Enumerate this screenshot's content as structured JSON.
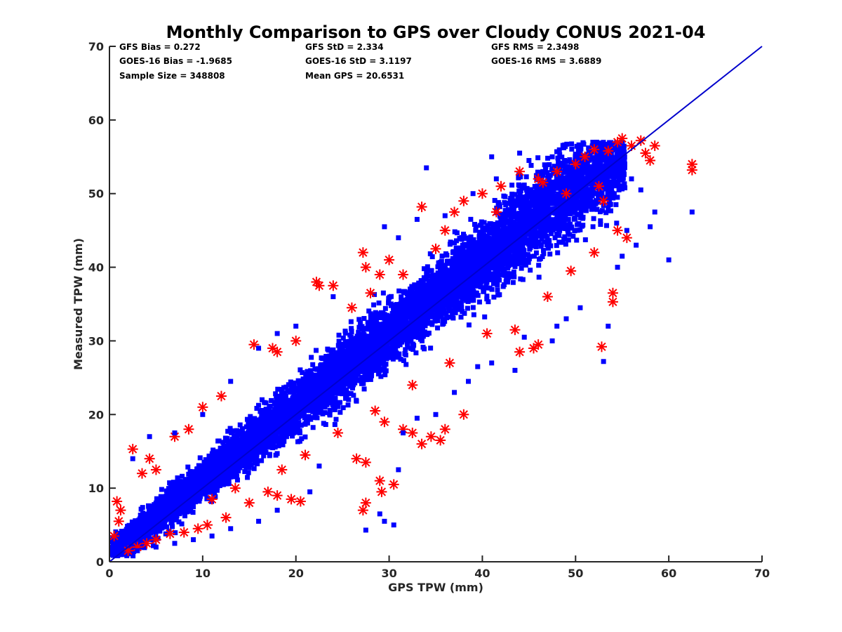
{
  "chart_data": {
    "type": "scatter",
    "title": "Monthly Comparison to GPS over Cloudy CONUS 2021-04",
    "xlabel": "GPS TPW (mm)",
    "ylabel": "Measured TPW (mm)",
    "xlim": [
      0,
      70
    ],
    "ylim": [
      0,
      70
    ],
    "xticks": [
      "0",
      "10",
      "20",
      "30",
      "40",
      "50",
      "60",
      "70"
    ],
    "yticks": [
      "0",
      "10",
      "20",
      "30",
      "40",
      "50",
      "60",
      "70"
    ],
    "grid": false,
    "reference_line": {
      "x": [
        0,
        70
      ],
      "y": [
        0,
        70
      ],
      "color": "#0000cc"
    },
    "stats": [
      [
        "GFS Bias = 0.272",
        "GFS StD = 2.334",
        "GFS RMS = 2.3498"
      ],
      [
        "GOES-16 Bias = -1.9685",
        "GOES-16 StD = 3.1197",
        "GOES-16 RMS = 3.6889"
      ],
      [
        "Sample Size = 348808",
        "Mean GPS = 20.6531",
        ""
      ]
    ],
    "series": [
      {
        "marker": "asterisk",
        "color": "#ff0000",
        "points": [
          [
            0.5,
            3.5
          ],
          [
            0.8,
            8.2
          ],
          [
            1.0,
            5.5
          ],
          [
            1.2,
            7.0
          ],
          [
            2.5,
            15.3
          ],
          [
            3.5,
            12.0
          ],
          [
            4.3,
            14.0
          ],
          [
            5.0,
            12.5
          ],
          [
            7.0,
            17.0
          ],
          [
            8.5,
            18.0
          ],
          [
            10.0,
            21.0
          ],
          [
            12.0,
            22.5
          ],
          [
            15.5,
            29.5
          ],
          [
            17.5,
            29.0
          ],
          [
            18.0,
            28.5
          ],
          [
            20.0,
            30.0
          ],
          [
            22.2,
            38.0
          ],
          [
            22.5,
            37.5
          ],
          [
            24.0,
            37.5
          ],
          [
            27.2,
            42.0
          ],
          [
            27.5,
            40.0
          ],
          [
            28.0,
            36.5
          ],
          [
            29.0,
            39.0
          ],
          [
            30.0,
            41.0
          ],
          [
            33.5,
            48.2
          ],
          [
            36.0,
            45.0
          ],
          [
            37.0,
            47.5
          ],
          [
            38.0,
            49.0
          ],
          [
            40.0,
            50.0
          ],
          [
            42.0,
            51.0
          ],
          [
            44.0,
            53.0
          ],
          [
            46.0,
            52.0
          ],
          [
            48.0,
            53.0
          ],
          [
            50.0,
            54.0
          ],
          [
            51.0,
            55.0
          ],
          [
            52.0,
            56.0
          ],
          [
            53.5,
            55.8
          ],
          [
            54.5,
            57.0
          ],
          [
            55.0,
            57.5
          ],
          [
            56.0,
            56.5
          ],
          [
            57.0,
            57.2
          ],
          [
            57.5,
            55.5
          ],
          [
            58.0,
            54.5
          ],
          [
            58.5,
            56.5
          ],
          [
            62.5,
            54.0
          ],
          [
            62.5,
            53.2
          ],
          [
            53.0,
            49.0
          ],
          [
            54.5,
            45.0
          ],
          [
            55.5,
            44.0
          ],
          [
            54.0,
            36.5
          ],
          [
            54.0,
            35.3
          ],
          [
            52.8,
            29.2
          ],
          [
            44.0,
            28.5
          ],
          [
            45.5,
            29.0
          ],
          [
            46.0,
            29.5
          ],
          [
            38.0,
            20.0
          ],
          [
            36.0,
            18.0
          ],
          [
            35.5,
            16.5
          ],
          [
            34.5,
            17.0
          ],
          [
            33.5,
            16.0
          ],
          [
            32.5,
            17.5
          ],
          [
            31.5,
            18.0
          ],
          [
            29.5,
            19.0
          ],
          [
            27.5,
            13.5
          ],
          [
            26.5,
            14.0
          ],
          [
            29.0,
            11.0
          ],
          [
            30.5,
            10.5
          ],
          [
            29.2,
            9.5
          ],
          [
            27.5,
            8.0
          ],
          [
            27.2,
            7.0
          ],
          [
            20.5,
            8.2
          ],
          [
            19.5,
            8.5
          ],
          [
            18.0,
            9.0
          ],
          [
            17.0,
            9.5
          ],
          [
            15.0,
            8.0
          ],
          [
            12.5,
            6.0
          ],
          [
            10.5,
            5.0
          ],
          [
            9.5,
            4.5
          ],
          [
            8.0,
            4.0
          ],
          [
            6.5,
            3.8
          ],
          [
            5.0,
            3.0
          ],
          [
            4.0,
            2.5
          ],
          [
            3.0,
            2.0
          ],
          [
            2.0,
            1.5
          ],
          [
            43.5,
            31.5
          ],
          [
            47.0,
            36.0
          ],
          [
            49.5,
            39.5
          ],
          [
            52.0,
            42.0
          ],
          [
            40.5,
            31.0
          ],
          [
            36.5,
            27.0
          ],
          [
            32.5,
            24.0
          ],
          [
            28.5,
            20.5
          ],
          [
            24.5,
            17.5
          ],
          [
            21.0,
            14.5
          ],
          [
            18.5,
            12.5
          ],
          [
            13.5,
            10.0
          ],
          [
            11.0,
            8.5
          ],
          [
            26.0,
            34.5
          ],
          [
            31.5,
            39.0
          ],
          [
            35.0,
            42.5
          ],
          [
            41.5,
            47.5
          ],
          [
            46.5,
            51.5
          ],
          [
            49.0,
            50.0
          ],
          [
            52.5,
            51.0
          ]
        ]
      },
      {
        "marker": "square",
        "color": "#0000ff",
        "points": [
          [
            34.0,
            53.5
          ],
          [
            41.0,
            55.0
          ],
          [
            41.5,
            52.0
          ],
          [
            44.0,
            55.5
          ],
          [
            45.0,
            54.5
          ],
          [
            47.5,
            55.0
          ],
          [
            49.5,
            53.5
          ],
          [
            56.0,
            52.0
          ],
          [
            58.5,
            47.5
          ],
          [
            62.5,
            47.5
          ],
          [
            58.0,
            45.5
          ],
          [
            55.5,
            45.0
          ],
          [
            55.0,
            41.5
          ],
          [
            54.5,
            40.0
          ],
          [
            53.5,
            32.0
          ],
          [
            53.0,
            27.2
          ],
          [
            49.0,
            33.0
          ],
          [
            50.5,
            34.5
          ],
          [
            48.0,
            32.0
          ],
          [
            44.5,
            30.5
          ],
          [
            47.5,
            30.0
          ],
          [
            43.5,
            26.0
          ],
          [
            41.0,
            27.0
          ],
          [
            39.5,
            26.5
          ],
          [
            38.5,
            24.5
          ],
          [
            37.0,
            23.0
          ],
          [
            35.0,
            20.0
          ],
          [
            33.0,
            19.5
          ],
          [
            31.5,
            17.5
          ],
          [
            31.0,
            12.5
          ],
          [
            30.5,
            5.0
          ],
          [
            29.0,
            6.5
          ],
          [
            27.5,
            4.3
          ],
          [
            29.5,
            5.5
          ],
          [
            22.5,
            13.0
          ],
          [
            21.5,
            9.5
          ],
          [
            18.0,
            7.0
          ],
          [
            16.0,
            5.5
          ],
          [
            13.0,
            4.5
          ],
          [
            11.0,
            3.5
          ],
          [
            9.0,
            3.0
          ],
          [
            7.0,
            2.5
          ],
          [
            5.0,
            2.0
          ],
          [
            3.0,
            1.5
          ],
          [
            2.5,
            14.0
          ],
          [
            4.3,
            17.0
          ],
          [
            7.0,
            17.5
          ],
          [
            10.0,
            20.0
          ],
          [
            13.0,
            24.5
          ],
          [
            16.0,
            29.0
          ],
          [
            18.0,
            31.0
          ],
          [
            20.0,
            32.0
          ],
          [
            24.0,
            36.0
          ],
          [
            29.5,
            45.5
          ],
          [
            31.0,
            44.0
          ],
          [
            33.0,
            46.5
          ],
          [
            36.0,
            47.0
          ],
          [
            39.0,
            50.0
          ],
          [
            46.5,
            52.5
          ],
          [
            51.0,
            53.0
          ],
          [
            54.5,
            51.5
          ],
          [
            57.0,
            50.5
          ],
          [
            56.5,
            43.0
          ],
          [
            60.0,
            41.0
          ]
        ]
      }
    ]
  }
}
